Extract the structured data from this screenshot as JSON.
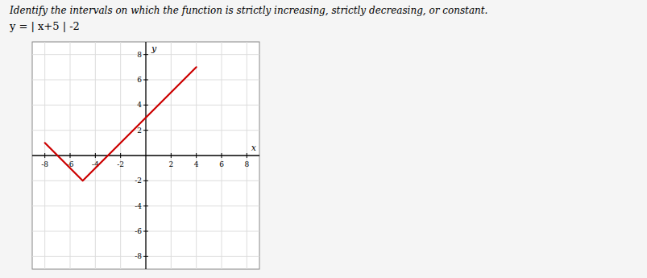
{
  "chart_data": {
    "type": "line",
    "title": "Identify the intervals on which the function is strictly increasing, strictly decreasing, or constant.",
    "subtitle": "y  = | x+5 | -2",
    "x_label": "x",
    "y_label": "y",
    "x": [
      -8,
      -5,
      4
    ],
    "values": [
      1,
      -2,
      7
    ],
    "color": "#cc0000",
    "xlim": [
      -9,
      9
    ],
    "ylim": [
      -9,
      9
    ],
    "xticks": [
      -8,
      -6,
      -4,
      -2,
      2,
      4,
      6,
      8
    ],
    "yticks": [
      -8,
      -6,
      -4,
      -2,
      2,
      4,
      6,
      8
    ],
    "grid": true
  }
}
